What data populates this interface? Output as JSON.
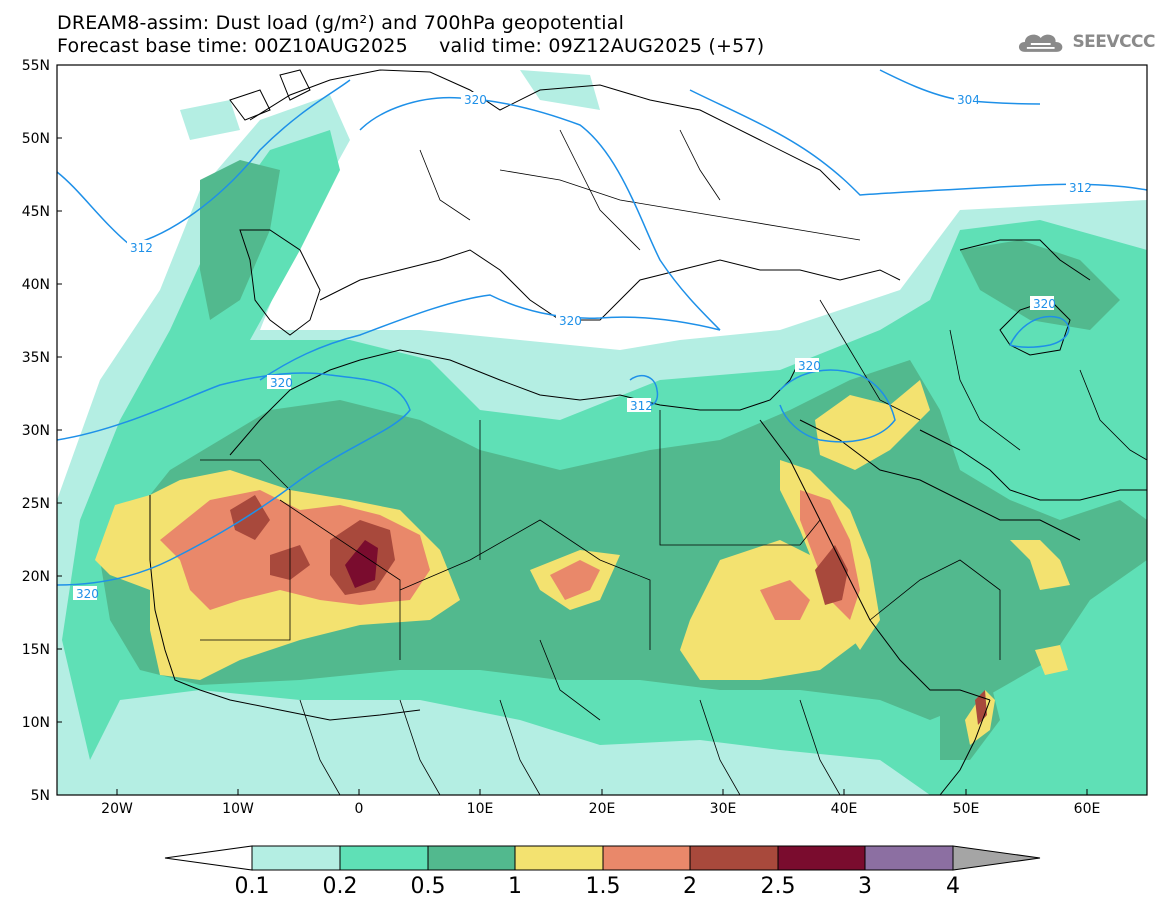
{
  "header": {
    "line1": "DREAM8-assim: Dust load (g/m²) and 700hPa geopotential",
    "line2": "Forecast base time: 00Z10AUG2025     valid time: 09Z12AUG2025 (+57)"
  },
  "logo": {
    "text": "SEEVCCC",
    "icon": "cloud-icon"
  },
  "map": {
    "lat_labels": [
      "55N",
      "50N",
      "45N",
      "40N",
      "35N",
      "30N",
      "25N",
      "20N",
      "15N",
      "10N",
      "5N"
    ],
    "lon_labels": [
      "20W",
      "10W",
      "0",
      "10E",
      "20E",
      "30E",
      "40E",
      "50E",
      "60E"
    ],
    "contour_labels": [
      "304",
      "312",
      "312",
      "312",
      "320",
      "320",
      "320",
      "320",
      "320",
      "320"
    ]
  },
  "legend": {
    "values": [
      "0.1",
      "0.2",
      "0.5",
      "1",
      "1.5",
      "2",
      "2.5",
      "3",
      "4"
    ],
    "colors": [
      "#ffffff",
      "#b4eee3",
      "#5fe0b6",
      "#52b98e",
      "#f3e270",
      "#e9886a",
      "#a8493c",
      "#7a0c2e",
      "#8c6fa2",
      "#a5a5a5"
    ]
  }
}
